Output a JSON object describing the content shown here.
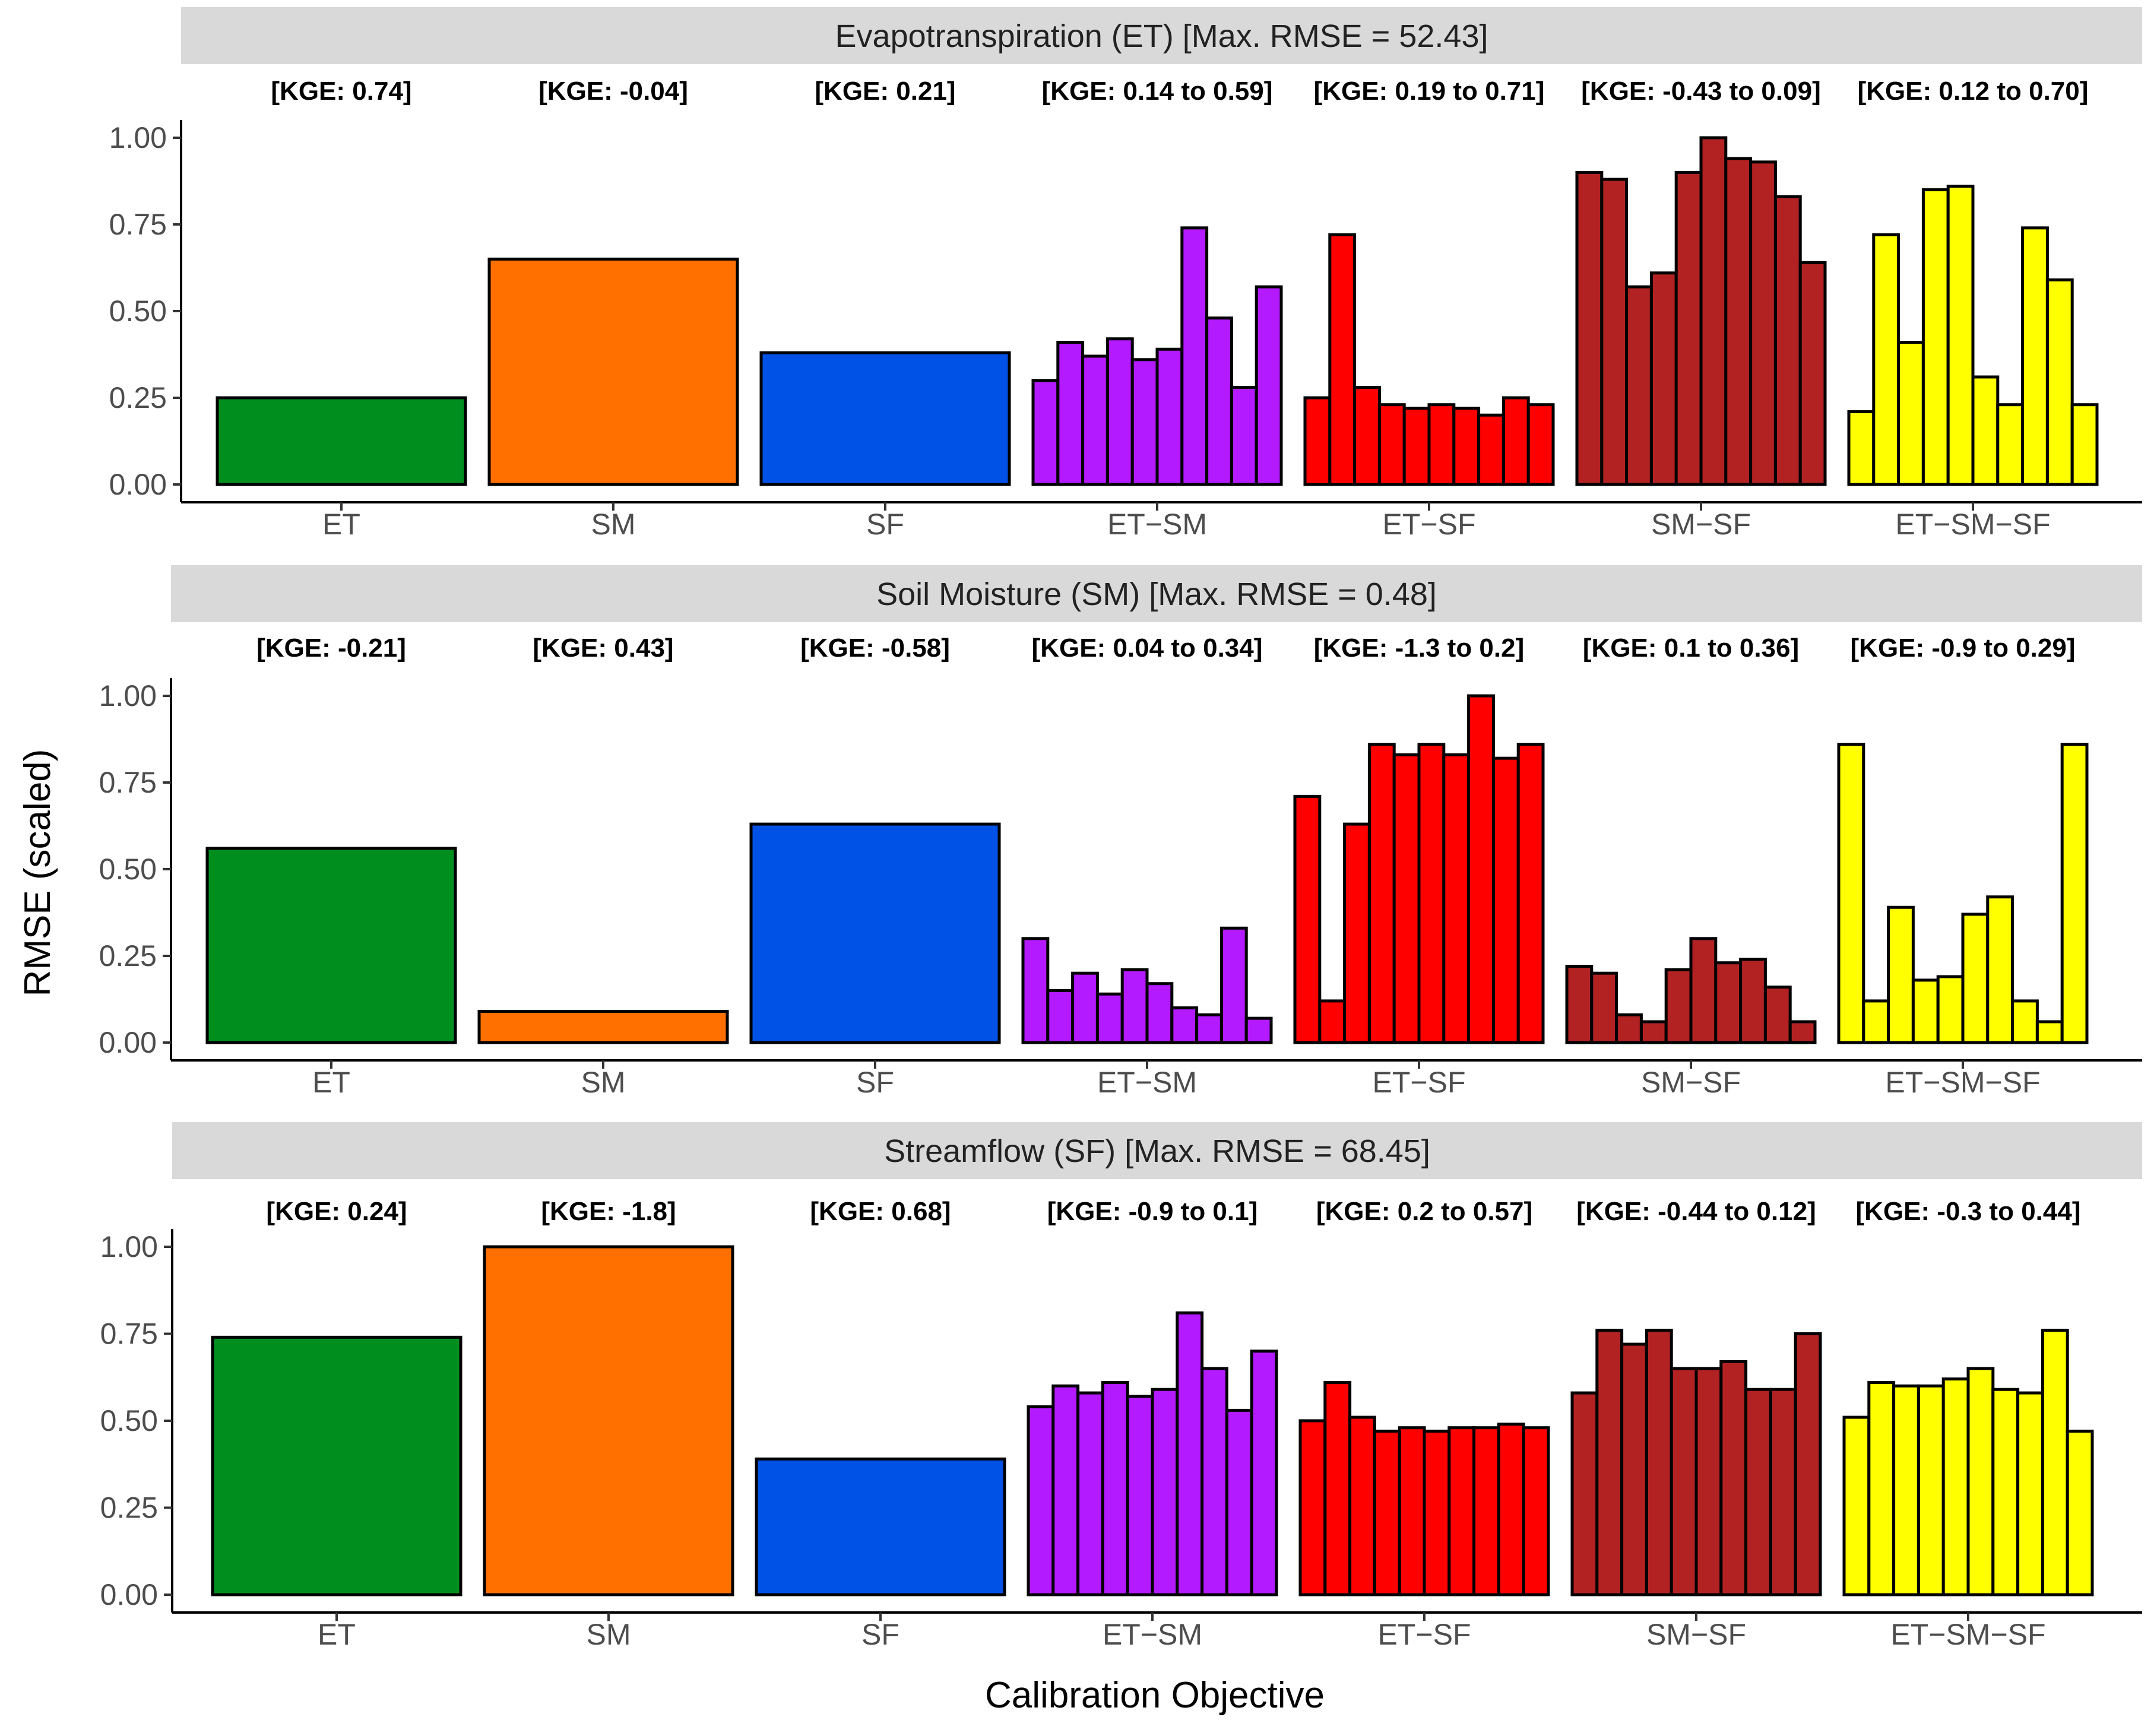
{
  "chart_data": {
    "type": "bar",
    "ylabel": "RMSE (scaled)",
    "xlabel": "Calibration Objective",
    "ylim": [
      0,
      1.0
    ],
    "yticks": [
      "0.00",
      "0.25",
      "0.50",
      "0.75",
      "1.00"
    ],
    "ytick_values": [
      0,
      0.25,
      0.5,
      0.75,
      1.0
    ],
    "categories": [
      "ET",
      "SM",
      "SF",
      "ET−SM",
      "ET−SF",
      "SM−SF",
      "ET−SM−SF"
    ],
    "colors": {
      "ET": "#008f1f",
      "SM": "#ff7000",
      "SF": "#0052e6",
      "ET-SM": "#b31aff",
      "ET-SF": "#ff0000",
      "SM-SF": "#b22222",
      "ET-SM-SF": "#ffff00"
    },
    "panels": [
      {
        "title": "Evapotranspiration (ET) [Max. RMSE = 52.43]",
        "kge": [
          "[KGE: 0.74]",
          "[KGE: -0.04]",
          "[KGE: 0.21]",
          "[KGE: 0.14 to 0.59]",
          "[KGE: 0.19 to 0.71]",
          "[KGE: -0.43 to 0.09]",
          "[KGE: 0.12 to 0.70]"
        ],
        "groups": [
          [
            0.25
          ],
          [
            0.65
          ],
          [
            0.38
          ],
          [
            0.3,
            0.41,
            0.37,
            0.42,
            0.36,
            0.39,
            0.74,
            0.48,
            0.28,
            0.57
          ],
          [
            0.25,
            0.72,
            0.28,
            0.23,
            0.22,
            0.23,
            0.22,
            0.2,
            0.25,
            0.23
          ],
          [
            0.9,
            0.88,
            0.57,
            0.61,
            0.9,
            1.0,
            0.94,
            0.93,
            0.83,
            0.64
          ],
          [
            0.21,
            0.72,
            0.41,
            0.85,
            0.86,
            0.31,
            0.23,
            0.74,
            0.59,
            0.23
          ]
        ]
      },
      {
        "title": "Soil Moisture (SM) [Max. RMSE = 0.48]",
        "kge": [
          "[KGE: -0.21]",
          "[KGE: 0.43]",
          "[KGE: -0.58]",
          "[KGE: 0.04 to 0.34]",
          "[KGE: -1.3 to 0.2]",
          "[KGE: 0.1 to 0.36]",
          "[KGE: -0.9 to 0.29]"
        ],
        "groups": [
          [
            0.56
          ],
          [
            0.09
          ],
          [
            0.63
          ],
          [
            0.3,
            0.15,
            0.2,
            0.14,
            0.21,
            0.17,
            0.1,
            0.08,
            0.33,
            0.07
          ],
          [
            0.71,
            0.12,
            0.63,
            0.86,
            0.83,
            0.86,
            0.83,
            1.0,
            0.82,
            0.86
          ],
          [
            0.22,
            0.2,
            0.08,
            0.06,
            0.21,
            0.3,
            0.23,
            0.24,
            0.16,
            0.06
          ],
          [
            0.86,
            0.12,
            0.39,
            0.18,
            0.19,
            0.37,
            0.42,
            0.12,
            0.06,
            0.86
          ]
        ]
      },
      {
        "title": "Streamflow (SF) [Max. RMSE = 68.45]",
        "kge": [
          "[KGE: 0.24]",
          "[KGE: -1.8]",
          "[KGE: 0.68]",
          "[KGE: -0.9 to 0.1]",
          "[KGE: 0.2 to 0.57]",
          "[KGE: -0.44 to 0.12]",
          "[KGE: -0.3 to 0.44]"
        ],
        "groups": [
          [
            0.74
          ],
          [
            1.0
          ],
          [
            0.39
          ],
          [
            0.54,
            0.6,
            0.58,
            0.61,
            0.57,
            0.59,
            0.81,
            0.65,
            0.53,
            0.7
          ],
          [
            0.5,
            0.61,
            0.51,
            0.47,
            0.48,
            0.47,
            0.48,
            0.48,
            0.49,
            0.48
          ],
          [
            0.58,
            0.76,
            0.72,
            0.76,
            0.65,
            0.65,
            0.67,
            0.59,
            0.59,
            0.75
          ],
          [
            0.51,
            0.61,
            0.6,
            0.6,
            0.62,
            0.65,
            0.59,
            0.58,
            0.76,
            0.47
          ]
        ]
      }
    ]
  }
}
